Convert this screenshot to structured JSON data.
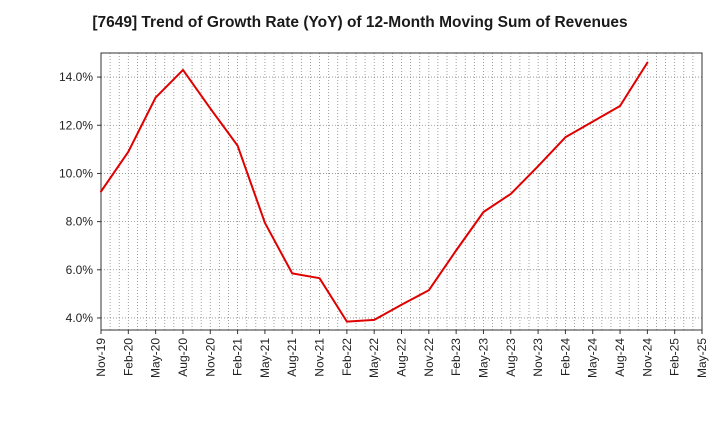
{
  "chart_data": {
    "type": "line",
    "title": "[7649]  Trend of Growth Rate (YoY) of 12-Month Moving Sum of Revenues",
    "xlabel": "",
    "ylabel": "",
    "categories": [
      "Nov-19",
      "Feb-20",
      "May-20",
      "Aug-20",
      "Nov-20",
      "Feb-21",
      "May-21",
      "Aug-21",
      "Nov-21",
      "Feb-22",
      "May-22",
      "Aug-22",
      "Nov-22",
      "Feb-23",
      "May-23",
      "Aug-23",
      "Nov-23",
      "Feb-24",
      "May-24",
      "Aug-24",
      "Nov-24",
      "Feb-25",
      "May-25"
    ],
    "x_tick_labels": [
      "Nov-19",
      "Feb-20",
      "May-20",
      "Aug-20",
      "Nov-20",
      "Feb-21",
      "May-21",
      "Aug-21",
      "Nov-21",
      "Feb-22",
      "May-22",
      "Aug-22",
      "Nov-22",
      "Feb-23",
      "May-23",
      "Aug-23",
      "Nov-23",
      "Feb-24",
      "May-24",
      "Aug-24",
      "Nov-24",
      "Feb-25",
      "May-25"
    ],
    "y_tick_values": [
      4.0,
      6.0,
      8.0,
      10.0,
      12.0,
      14.0
    ],
    "y_tick_labels": [
      "4.0%",
      "6.0%",
      "8.0%",
      "10.0%",
      "12.0%",
      "14.0%"
    ],
    "ylim": [
      3.5,
      15.0
    ],
    "grid": true,
    "series": [
      {
        "values": [
          9.25,
          10.9,
          13.15,
          14.3,
          12.7,
          11.15,
          7.95,
          5.85,
          5.65,
          3.85,
          3.92,
          4.55,
          5.15,
          6.8,
          8.4,
          9.15,
          10.3,
          11.5,
          12.15,
          12.8,
          14.6,
          null,
          null
        ],
        "color": "#e00000"
      }
    ]
  }
}
